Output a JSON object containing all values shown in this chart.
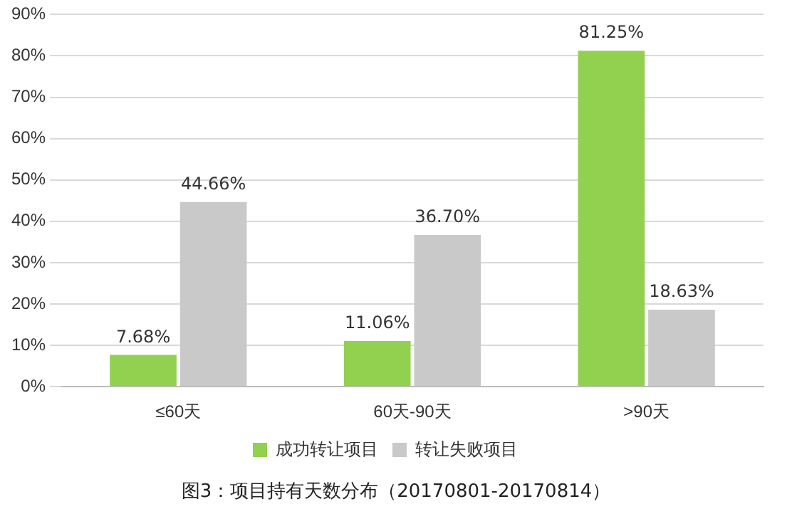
{
  "chart_data": {
    "type": "bar",
    "title": "图3：项目持有天数分布（20170801-20170814）",
    "categories": [
      "≤60天",
      "60天-90天",
      ">90天"
    ],
    "series": [
      {
        "name": "成功转让项目",
        "color": "#92d050",
        "values": [
          7.68,
          11.06,
          81.25
        ],
        "value_labels": [
          "7.68%",
          "11.06%",
          "81.25%"
        ]
      },
      {
        "name": "转让失败项目",
        "color": "#c9c9c9",
        "values": [
          44.66,
          36.7,
          18.63
        ],
        "value_labels": [
          "44.66%",
          "36.70%",
          "18.63%"
        ]
      }
    ],
    "ylim": [
      0,
      90
    ],
    "yticks": [
      {
        "value": 0,
        "label": "0%"
      },
      {
        "value": 10,
        "label": "10%"
      },
      {
        "value": 20,
        "label": "20%"
      },
      {
        "value": 30,
        "label": "30%"
      },
      {
        "value": 40,
        "label": "40%"
      },
      {
        "value": 50,
        "label": "50%"
      },
      {
        "value": 60,
        "label": "60%"
      },
      {
        "value": 70,
        "label": "70%"
      },
      {
        "value": 80,
        "label": "80%"
      },
      {
        "value": 90,
        "label": "90%"
      }
    ],
    "grid": "y",
    "legend": "bottom"
  }
}
